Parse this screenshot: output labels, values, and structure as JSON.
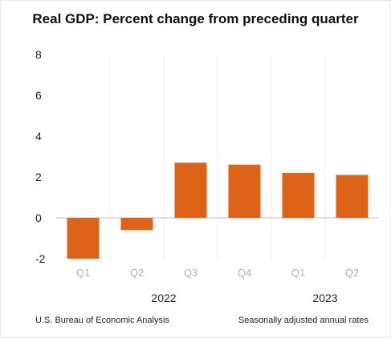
{
  "chart_data": {
    "type": "bar",
    "title": "Real GDP:  Percent change from preceding quarter",
    "categories": [
      "Q1",
      "Q2",
      "Q3",
      "Q4",
      "Q1",
      "Q2"
    ],
    "years": [
      {
        "label": "2022",
        "span": [
          0,
          3
        ]
      },
      {
        "label": "2023",
        "span": [
          4,
          5
        ]
      }
    ],
    "series": [
      {
        "values": [
          -2.0,
          -0.6,
          2.7,
          2.6,
          2.2,
          2.1
        ]
      }
    ],
    "ylim": [
      -2,
      8
    ],
    "yticks": [
      "-2",
      "0",
      "2",
      "4",
      "6",
      "8"
    ],
    "grid": "vertical separators",
    "colors": {
      "bar": "#dd6319",
      "axis": "#bdbdbd",
      "grid": "#ececec"
    }
  },
  "footer": {
    "source": "U.S. Bureau of Economic Analysis",
    "note": "Seasonally adjusted annual rates"
  }
}
